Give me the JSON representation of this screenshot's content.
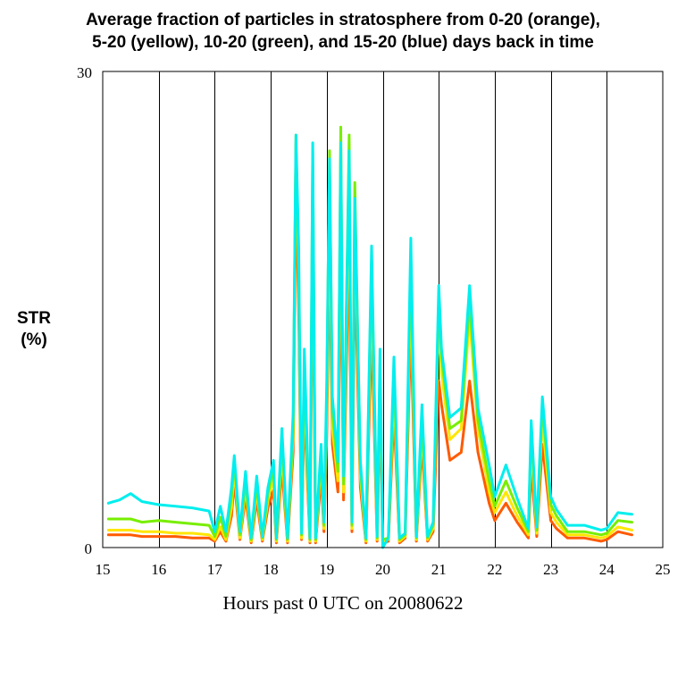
{
  "chart_data": {
    "type": "line",
    "title_lines": [
      "Average fraction of particles in stratosphere from 0-20 (orange),",
      "5-20 (yellow), 10-20 (green), and 15-20 (blue) days back in time"
    ],
    "ylabel_lines": [
      "STR",
      "(%)"
    ],
    "xlabel": "Hours past 0 UTC on 20080622",
    "xlim": [
      15,
      25
    ],
    "ylim": [
      0,
      30
    ],
    "xticks": [
      "15",
      "16",
      "17",
      "18",
      "19",
      "20",
      "21",
      "22",
      "23",
      "24",
      "25"
    ],
    "yticks": [
      "0",
      "30"
    ],
    "vgrid": [
      16,
      17,
      18,
      19,
      20,
      21,
      22,
      23,
      24
    ],
    "x": [
      15.1,
      15.3,
      15.5,
      15.7,
      16.0,
      16.3,
      16.6,
      16.9,
      17.0,
      17.1,
      17.2,
      17.3,
      17.35,
      17.45,
      17.55,
      17.65,
      17.75,
      17.85,
      17.95,
      18.05,
      18.1,
      18.2,
      18.3,
      18.4,
      18.45,
      18.5,
      18.55,
      18.6,
      18.7,
      18.75,
      18.8,
      18.9,
      18.95,
      19.0,
      19.05,
      19.1,
      19.2,
      19.25,
      19.3,
      19.4,
      19.45,
      19.5,
      19.6,
      19.7,
      19.8,
      19.9,
      19.95,
      20.0,
      20.1,
      20.2,
      20.3,
      20.4,
      20.5,
      20.6,
      20.7,
      20.8,
      20.9,
      21.0,
      21.05,
      21.2,
      21.4,
      21.55,
      21.7,
      21.9,
      22.0,
      22.2,
      22.4,
      22.6,
      22.65,
      22.75,
      22.85,
      23.0,
      23.1,
      23.3,
      23.6,
      23.9,
      24.0,
      24.2,
      24.45
    ],
    "series": [
      {
        "name": "0-20 days (orange)",
        "color": "#ff5a00",
        "values": [
          0.8,
          0.8,
          0.8,
          0.7,
          0.7,
          0.7,
          0.6,
          0.6,
          0.4,
          1.0,
          0.4,
          2.0,
          4.2,
          0.5,
          3.2,
          0.3,
          3.0,
          0.4,
          2.5,
          3.6,
          0.3,
          5.0,
          0.3,
          6.0,
          23.0,
          15.0,
          0.5,
          9.0,
          0.3,
          20.0,
          0.3,
          4.5,
          1.0,
          7.0,
          19.0,
          6.5,
          3.5,
          20.0,
          3.0,
          19.5,
          1.0,
          18.0,
          3.8,
          0.3,
          14.0,
          0.4,
          9.0,
          0.3,
          0.4,
          8.5,
          0.3,
          0.6,
          14.0,
          0.4,
          6.5,
          0.4,
          1.0,
          10.5,
          9.0,
          5.5,
          6.0,
          10.5,
          6.0,
          2.8,
          1.7,
          2.8,
          1.6,
          0.6,
          5.0,
          0.7,
          6.5,
          1.7,
          1.2,
          0.6,
          0.6,
          0.4,
          0.5,
          1.0,
          0.8
        ]
      },
      {
        "name": "5-20 days (yellow)",
        "color": "#ffe600",
        "values": [
          1.1,
          1.1,
          1.1,
          1.0,
          1.0,
          0.9,
          0.9,
          0.8,
          0.5,
          1.3,
          0.5,
          2.5,
          5.0,
          0.6,
          3.8,
          0.4,
          3.6,
          0.5,
          3.0,
          4.4,
          0.4,
          6.0,
          0.4,
          7.0,
          26.0,
          17.0,
          0.6,
          10.5,
          0.4,
          23.0,
          0.4,
          5.5,
          1.2,
          8.5,
          22.0,
          7.5,
          4.2,
          23.5,
          3.5,
          23.0,
          1.2,
          21.0,
          4.5,
          0.4,
          16.5,
          0.5,
          10.5,
          0.4,
          0.5,
          10.0,
          0.4,
          0.7,
          16.5,
          0.5,
          7.5,
          0.5,
          1.2,
          14.5,
          11.0,
          6.8,
          7.5,
          14.5,
          7.5,
          3.5,
          2.2,
          3.5,
          2.0,
          0.8,
          6.5,
          0.9,
          8.0,
          2.2,
          1.6,
          0.8,
          0.8,
          0.6,
          0.7,
          1.3,
          1.1
        ]
      },
      {
        "name": "10-20 days (green)",
        "color": "#78ee00",
        "values": [
          1.8,
          1.8,
          1.8,
          1.6,
          1.7,
          1.6,
          1.5,
          1.4,
          0.7,
          1.9,
          0.7,
          3.2,
          5.5,
          0.8,
          4.2,
          0.5,
          4.0,
          0.6,
          3.4,
          5.0,
          0.5,
          6.8,
          0.5,
          7.5,
          25.5,
          18.0,
          0.8,
          11.5,
          0.5,
          25.0,
          0.5,
          6.0,
          1.4,
          9.5,
          25.0,
          8.5,
          4.8,
          26.5,
          4.0,
          26.0,
          1.4,
          23.0,
          5.0,
          0.5,
          18.0,
          0.6,
          11.5,
          0.5,
          0.6,
          11.0,
          0.5,
          0.8,
          18.0,
          0.6,
          8.0,
          0.6,
          1.4,
          15.5,
          12.0,
          7.5,
          8.0,
          15.5,
          8.0,
          4.2,
          2.6,
          4.2,
          2.5,
          1.0,
          7.5,
          1.1,
          9.0,
          2.7,
          2.0,
          1.0,
          1.0,
          0.8,
          0.9,
          1.7,
          1.6
        ]
      },
      {
        "name": "15-20 days (blue)",
        "color": "#00eeee",
        "values": [
          2.8,
          3.0,
          3.4,
          2.9,
          2.7,
          2.6,
          2.5,
          2.3,
          1.0,
          2.6,
          1.0,
          3.8,
          5.8,
          1.0,
          4.8,
          0.6,
          4.5,
          0.7,
          3.8,
          5.5,
          0.6,
          7.5,
          0.6,
          8.5,
          26.0,
          19.0,
          0.9,
          12.5,
          0.6,
          25.5,
          0.6,
          6.5,
          1.6,
          10.5,
          24.5,
          9.5,
          5.4,
          25.5,
          4.5,
          25.0,
          1.6,
          22.0,
          5.5,
          0.6,
          19.0,
          0.7,
          12.5,
          0.0,
          0.6,
          12.0,
          0.6,
          0.9,
          19.5,
          0.7,
          9.0,
          0.7,
          1.6,
          16.5,
          12.5,
          8.2,
          8.8,
          16.5,
          8.8,
          5.2,
          3.2,
          5.2,
          3.1,
          1.2,
          8.0,
          1.3,
          9.5,
          3.2,
          2.4,
          1.4,
          1.4,
          1.1,
          1.2,
          2.2,
          2.1
        ]
      }
    ]
  }
}
